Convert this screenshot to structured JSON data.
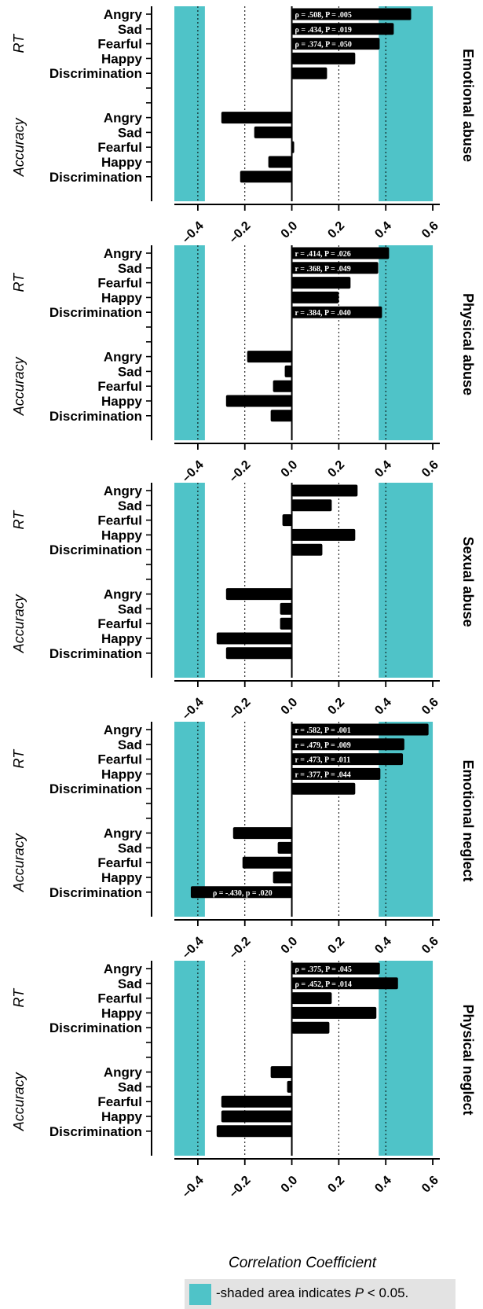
{
  "chart_data": {
    "type": "bar",
    "orientation": "horizontal",
    "xlabel": "Correlation Coefficient",
    "xlim": [
      -0.5,
      0.63
    ],
    "xticks": [
      "-0.4",
      "-0.2",
      "0.0",
      "0.2",
      "0.4",
      "0.6"
    ],
    "xtick_values": [
      -0.4,
      -0.2,
      0.0,
      0.2,
      0.4,
      0.6
    ],
    "significance_lines": [
      -0.4,
      0.4
    ],
    "panel_lines": [
      -0.2,
      0.2
    ],
    "shaded_regions": [
      [
        -0.5,
        -0.37
      ],
      [
        0.37,
        0.6
      ]
    ],
    "group_labels": [
      "RT",
      "Accuracy"
    ],
    "categories": [
      "Angry",
      "Sad",
      "Fearful",
      "Happy",
      "Discrimination"
    ],
    "panels": [
      {
        "title": "Emotional abuse",
        "rt": [
          0.508,
          0.434,
          0.374,
          0.27,
          0.15
        ],
        "accuracy": [
          -0.3,
          -0.16,
          0.01,
          -0.1,
          -0.22
        ],
        "rt_annotations": [
          "ρ = .508, P = .005",
          "ρ = .434, P = .019",
          "ρ = .374, P = .050",
          "",
          ""
        ],
        "accuracy_annotations": [
          "",
          "",
          "",
          "",
          ""
        ]
      },
      {
        "title": "Physical abuse",
        "rt": [
          0.414,
          0.368,
          0.25,
          0.2,
          0.384
        ],
        "accuracy": [
          -0.19,
          -0.03,
          -0.08,
          -0.28,
          -0.09
        ],
        "rt_annotations": [
          "r = .414, P = .026",
          "r = .368, P = .049",
          "",
          "",
          "r = .384, P = .040"
        ],
        "accuracy_annotations": [
          "",
          "",
          "",
          "",
          ""
        ]
      },
      {
        "title": "Sexual abuse",
        "rt": [
          0.28,
          0.17,
          -0.04,
          0.27,
          0.13
        ],
        "accuracy": [
          -0.28,
          -0.05,
          -0.05,
          -0.32,
          -0.28
        ],
        "rt_annotations": [
          "",
          "",
          "",
          "",
          ""
        ],
        "accuracy_annotations": [
          "",
          "",
          "",
          "",
          ""
        ]
      },
      {
        "title": "Emotional neglect",
        "rt": [
          0.582,
          0.479,
          0.473,
          0.377,
          0.27
        ],
        "accuracy": [
          -0.25,
          -0.06,
          -0.21,
          -0.08,
          -0.43
        ],
        "rt_annotations": [
          "r = .582, P = .001",
          "r = .479, P = .009",
          "r = .473, P = .011",
          "r = .377, P = .044",
          ""
        ],
        "accuracy_annotations": [
          "",
          "",
          "",
          "",
          "ρ = -.430, p = .020"
        ]
      },
      {
        "title": "Physical neglect",
        "rt": [
          0.375,
          0.452,
          0.17,
          0.36,
          0.16
        ],
        "accuracy": [
          -0.09,
          -0.02,
          -0.3,
          -0.3,
          -0.32
        ],
        "rt_annotations": [
          "ρ = .375, P = .045",
          "ρ = .452, P = .014",
          "",
          "",
          ""
        ],
        "accuracy_annotations": [
          "",
          "",
          "",
          "",
          ""
        ]
      }
    ]
  },
  "legend": {
    "swatch_color": "#4fc3c8",
    "text_before": "-shaded area indicates ",
    "text_italic": "P",
    "text_after": " < 0.05."
  },
  "colors": {
    "shade": "#4fc3c8",
    "bar": "#000000",
    "annotation_text": "#ffffff"
  }
}
